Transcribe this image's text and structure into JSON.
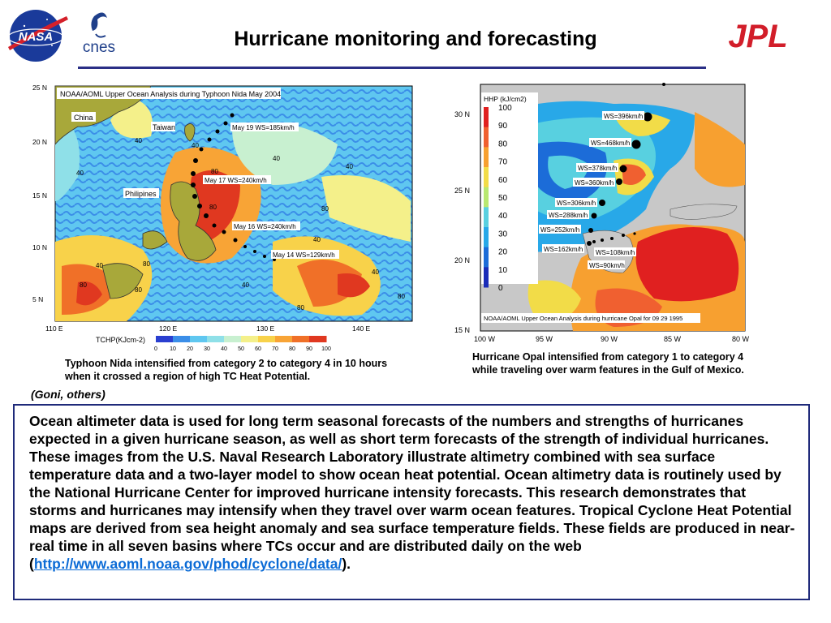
{
  "header": {
    "title": "Hurricane monitoring and forecasting",
    "logos": {
      "nasa": "NASA",
      "cnes": "cnes",
      "jpl": "JPL"
    }
  },
  "left_map": {
    "title": "NOAA/AOML Upper Ocean Analysis during Typhoon Nida May 2004",
    "lat_ticks": [
      "25 N",
      "20 N",
      "15 N",
      "10 N",
      "5 N"
    ],
    "lon_ticks": [
      "110 E",
      "120 E",
      "130 E",
      "140 E"
    ],
    "places": [
      "China",
      "Taiwan",
      "Philipines"
    ],
    "storm_labels": [
      "May 19 WS=185km/h",
      "May 17 WS=240km/h",
      "May 16 WS=240km/h",
      "May 14 WS=129km/h"
    ],
    "contour_labels": [
      "40",
      "40",
      "40",
      "40",
      "80",
      "80",
      "80",
      "40",
      "80",
      "40",
      "80",
      "80",
      "40",
      "40",
      "80",
      "40",
      "80"
    ],
    "colorbar_label": "TCHP(KJcm-2)",
    "colorbar_ticks": [
      "0",
      "10",
      "20",
      "30",
      "40",
      "50",
      "60",
      "70",
      "80",
      "90",
      "100"
    ],
    "colorbar_colors": [
      "#2a3fd0",
      "#3b8ee8",
      "#5fc7f0",
      "#8fe0e8",
      "#c8f0d0",
      "#f4f08a",
      "#f8d24a",
      "#f8a436",
      "#f07028",
      "#e03820"
    ],
    "caption": "Typhoon Nida intensified from category 2 to category 4 in 10 hours when it crossed a region of high TC Heat Potential."
  },
  "right_map": {
    "title": "NOAA/AOML Upper Ocean Analysis during hurricane Opal for 09 29 1995",
    "lat_ticks": [
      "30 N",
      "25 N",
      "20 N",
      "15 N"
    ],
    "lon_ticks": [
      "100 W",
      "95 W",
      "90 W",
      "85 W",
      "80 W"
    ],
    "storm_labels": [
      "WS=396km/h",
      "WS=468km/h",
      "WS=378km/h",
      "WS=360km/h",
      "WS=306km/h",
      "WS=288km/h",
      "WS=252km/h",
      "WS=162km/h",
      "WS=108km/h",
      "WS=90km/h"
    ],
    "legend_title": "HHP (kJ/cm2)",
    "legend_ticks": [
      "100",
      "90",
      "80",
      "70",
      "60",
      "50",
      "40",
      "30",
      "20",
      "10",
      "0"
    ],
    "legend_colors": [
      "#e02020",
      "#f06030",
      "#f7a030",
      "#f2dc48",
      "#b8e870",
      "#58d0e0",
      "#28a8e8",
      "#1c6cd8",
      "#1a2cb8"
    ],
    "caption": "Hurricane Opal intensified from category 1 to category 4 while traveling over warm features in the Gulf of Mexico."
  },
  "credit": "(Goni, others)",
  "body": {
    "text": "Ocean altimeter data is used for long term seasonal forecasts of the numbers and strengths of hurricanes expected in a given hurricane season, as well as short term forecasts of the strength of individual hurricanes. These images from the U.S. Naval Research Laboratory illustrate altimetry combined with sea surface temperature data and a two-layer model to show ocean heat potential. Ocean altimetry data is routinely used by the National Hurricane Center for improved hurricane intensity forecasts.  This research demonstrates that storms and hurricanes may intensify when they travel over warm ocean features. Tropical Cyclone Heat Potential maps are derived from sea height anomaly and sea surface temperature fields.  These fields are produced in near-real time in all seven basins where TCs occur and are distributed daily on the web",
    "link_open": "(",
    "link_text": "http://www.aoml.noaa.gov/phod/cyclone/data/",
    "link_close": ")."
  }
}
